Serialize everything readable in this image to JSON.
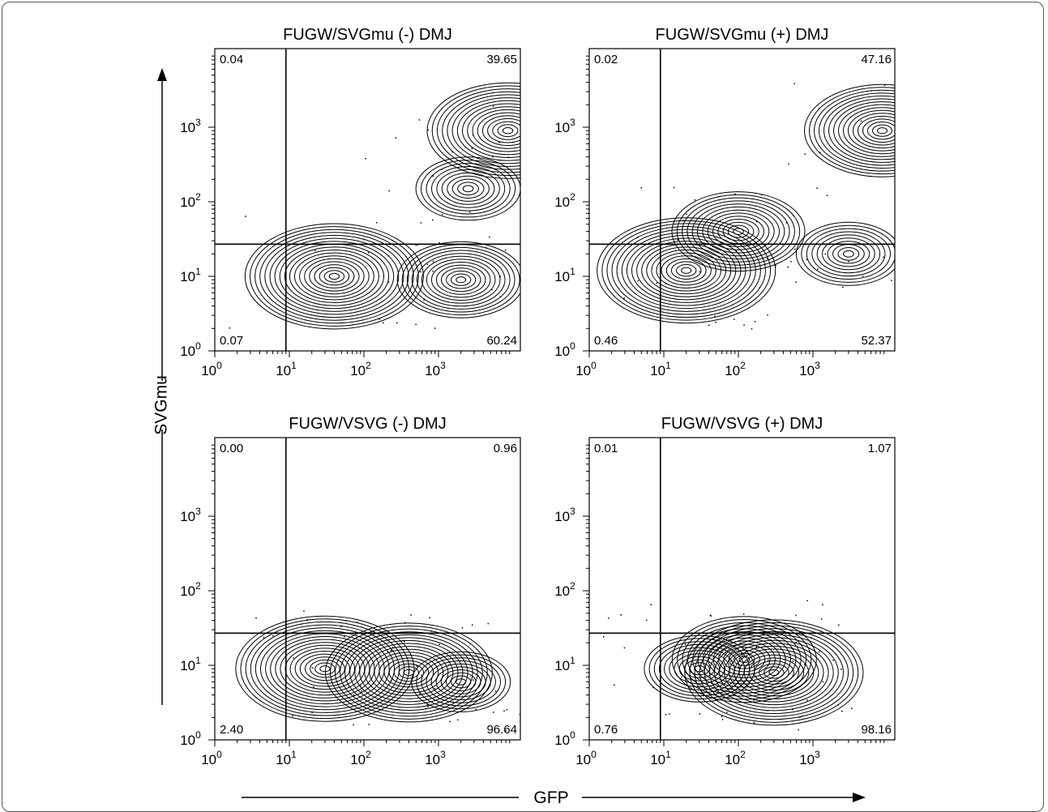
{
  "axes": {
    "y_title": "SVGmu",
    "x_title": "GFP",
    "tick_base": "10",
    "tick_exponents": [
      "0",
      "1",
      "2",
      "3"
    ]
  },
  "chart_data": [
    {
      "type": "contour",
      "title": "FUGW/SVGmu  (-) DMJ",
      "xlabel": "GFP",
      "ylabel": "SVGmu",
      "xscale": "log",
      "yscale": "log",
      "xlim": [
        1,
        9000
      ],
      "ylim": [
        1,
        9000
      ],
      "gate": {
        "x": 9,
        "y": 27
      },
      "quadrants": {
        "upper_left": "0.04",
        "upper_right": "39.65",
        "lower_left": "0.07",
        "lower_right": "60.24"
      },
      "populations": [
        {
          "x": 40,
          "y": 10,
          "level": 1.0
        },
        {
          "x": 2000,
          "y": 9,
          "level": 0.55
        },
        {
          "x": 8500,
          "y": 900,
          "level": 0.85
        },
        {
          "x": 2500,
          "y": 150,
          "level": 0.35
        }
      ]
    },
    {
      "type": "contour",
      "title": "FUGW/SVGmu  (+) DMJ",
      "xlabel": "GFP",
      "ylabel": "SVGmu",
      "xscale": "log",
      "yscale": "log",
      "xlim": [
        1,
        9000
      ],
      "ylim": [
        1,
        9000
      ],
      "gate": {
        "x": 9,
        "y": 27
      },
      "quadrants": {
        "upper_left": "0.02",
        "upper_right": "47.16",
        "lower_left": "0.46",
        "lower_right": "52.37"
      },
      "populations": [
        {
          "x": 20,
          "y": 12,
          "level": 1.0
        },
        {
          "x": 100,
          "y": 40,
          "level": 0.6
        },
        {
          "x": 8500,
          "y": 900,
          "level": 0.8
        },
        {
          "x": 3000,
          "y": 20,
          "level": 0.35
        }
      ]
    },
    {
      "type": "contour",
      "title": "FUGW/VSVG  (-) DMJ",
      "xlabel": "GFP",
      "ylabel": "SVGmu",
      "xscale": "log",
      "yscale": "log",
      "xlim": [
        1,
        9000
      ],
      "ylim": [
        1,
        9000
      ],
      "gate": {
        "x": 9,
        "y": 27
      },
      "quadrants": {
        "upper_left": "0.00",
        "upper_right": "0.96",
        "lower_left": "2.40",
        "lower_right": "96.64"
      },
      "populations": [
        {
          "x": 30,
          "y": 9,
          "level": 1.0
        },
        {
          "x": 400,
          "y": 8,
          "level": 0.9
        },
        {
          "x": 2000,
          "y": 6,
          "level": 0.3
        }
      ]
    },
    {
      "type": "contour",
      "title": "FUGW/VSVG  (+) DMJ",
      "xlabel": "GFP",
      "ylabel": "SVGmu",
      "xscale": "log",
      "yscale": "log",
      "xlim": [
        1,
        9000
      ],
      "ylim": [
        1,
        9000
      ],
      "gate": {
        "x": 9,
        "y": 27
      },
      "quadrants": {
        "upper_left": "0.01",
        "upper_right": "1.07",
        "lower_left": "0.76",
        "lower_right": "98.16"
      },
      "populations": [
        {
          "x": 300,
          "y": 8,
          "level": 1.0
        },
        {
          "x": 120,
          "y": 12,
          "level": 0.7
        },
        {
          "x": 30,
          "y": 9,
          "level": 0.4
        }
      ]
    }
  ]
}
